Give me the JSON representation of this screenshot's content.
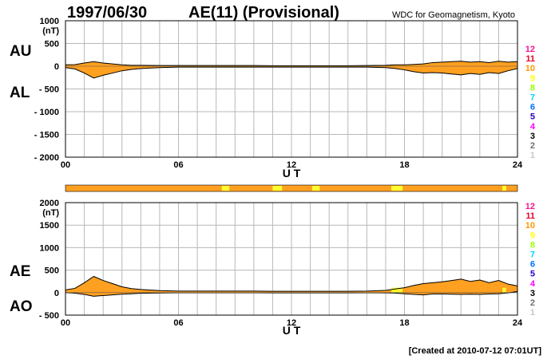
{
  "header": {
    "date": "1997/06/30",
    "title": "AE(11) (Provisional)",
    "source": "WDC for Geomagnetism, Kyoto"
  },
  "footer": {
    "created": "[Created at 2010-07-12 07:01UT]"
  },
  "legend": {
    "labels": [
      "12",
      "11",
      "10",
      "9",
      "8",
      "7",
      "6",
      "5",
      "4",
      "3",
      "2",
      "1"
    ],
    "colors": [
      "#ff1493",
      "#e8002a",
      "#ff9a00",
      "#ffff00",
      "#9cff00",
      "#00d8ff",
      "#0070ff",
      "#2a00c8",
      "#ff00ff",
      "#000000",
      "#707070",
      "#c8c8c8"
    ]
  },
  "colors": {
    "fill": "#ffa020",
    "highlight": "#ffff30",
    "grid": "#b8b8b8",
    "line": "#000000"
  },
  "chart_data": [
    {
      "type": "area",
      "panel": "AU/AL",
      "side_labels": [
        "AU",
        "AL"
      ],
      "unit": "(nT)",
      "xlabel": "U T",
      "xticks": [
        "00",
        "06",
        "12",
        "18",
        "24"
      ],
      "xlim": [
        0,
        24
      ],
      "ylim": [
        -2000,
        1000
      ],
      "yticks": [
        "1000",
        "500",
        "0",
        "- 500",
        "- 1000",
        "- 1500",
        "- 2000"
      ],
      "ytick_values": [
        1000,
        500,
        0,
        -500,
        -1000,
        -1500,
        -2000
      ],
      "hours": [
        0,
        0.5,
        1,
        1.5,
        2,
        2.5,
        3,
        3.5,
        4,
        5,
        6,
        7,
        8,
        9,
        10,
        11,
        12,
        13,
        14,
        15,
        16,
        17,
        17.5,
        18,
        18.5,
        19,
        19.5,
        20,
        20.5,
        21,
        21.5,
        22,
        22.5,
        23,
        23.5,
        24
      ],
      "series": [
        {
          "name": "AU",
          "values": [
            30,
            35,
            70,
            100,
            70,
            50,
            30,
            20,
            20,
            15,
            15,
            15,
            15,
            15,
            15,
            10,
            10,
            10,
            10,
            10,
            15,
            20,
            30,
            30,
            40,
            50,
            80,
            90,
            100,
            110,
            90,
            100,
            80,
            110,
            90,
            100
          ]
        },
        {
          "name": "AL",
          "values": [
            -30,
            -60,
            -150,
            -260,
            -200,
            -150,
            -100,
            -70,
            -50,
            -30,
            -20,
            -20,
            -20,
            -20,
            -20,
            -20,
            -20,
            -20,
            -20,
            -20,
            -20,
            -30,
            -50,
            -80,
            -120,
            -150,
            -140,
            -150,
            -170,
            -190,
            -160,
            -180,
            -140,
            -160,
            -100,
            -50
          ]
        }
      ]
    },
    {
      "type": "bar",
      "panel": "station-coverage",
      "xlim": [
        0,
        24
      ],
      "highlight_intervals": [
        [
          8.3,
          8.7
        ],
        [
          11.0,
          11.5
        ],
        [
          13.1,
          13.5
        ],
        [
          17.3,
          17.9
        ],
        [
          23.2,
          23.4
        ]
      ]
    },
    {
      "type": "area",
      "panel": "AE/AO",
      "side_labels": [
        "AE",
        "AO"
      ],
      "unit": "(nT)",
      "xlabel": "U T",
      "xticks": [
        "00",
        "06",
        "12",
        "18",
        "24"
      ],
      "xlim": [
        0,
        24
      ],
      "ylim": [
        -500,
        2000
      ],
      "yticks": [
        "2000",
        "1500",
        "1000",
        "500",
        "0",
        "- 500"
      ],
      "ytick_values": [
        2000,
        1500,
        1000,
        500,
        0,
        -500
      ],
      "hours": [
        0,
        0.5,
        1,
        1.5,
        2,
        2.5,
        3,
        3.5,
        4,
        5,
        6,
        7,
        8,
        9,
        10,
        11,
        12,
        13,
        14,
        15,
        16,
        17,
        17.5,
        18,
        18.5,
        19,
        19.5,
        20,
        20.5,
        21,
        21.5,
        22,
        22.5,
        23,
        23.5,
        24
      ],
      "series": [
        {
          "name": "AE",
          "values": [
            60,
            95,
            220,
            360,
            270,
            200,
            130,
            90,
            70,
            45,
            35,
            35,
            35,
            35,
            35,
            30,
            30,
            30,
            30,
            30,
            35,
            50,
            80,
            110,
            160,
            200,
            220,
            240,
            270,
            300,
            250,
            280,
            220,
            270,
            190,
            150
          ]
        },
        {
          "name": "AO",
          "values": [
            0,
            -12,
            -40,
            -80,
            -65,
            -50,
            -35,
            -25,
            -15,
            -8,
            -3,
            -3,
            -3,
            -3,
            -3,
            -5,
            -5,
            -5,
            -5,
            -5,
            -3,
            -5,
            -10,
            -25,
            -40,
            -50,
            -30,
            -30,
            -35,
            -40,
            -35,
            -40,
            -30,
            -25,
            -5,
            25
          ]
        }
      ],
      "highlight_intervals": [
        [
          17.3,
          17.9
        ],
        [
          23.2,
          23.4
        ]
      ]
    }
  ]
}
